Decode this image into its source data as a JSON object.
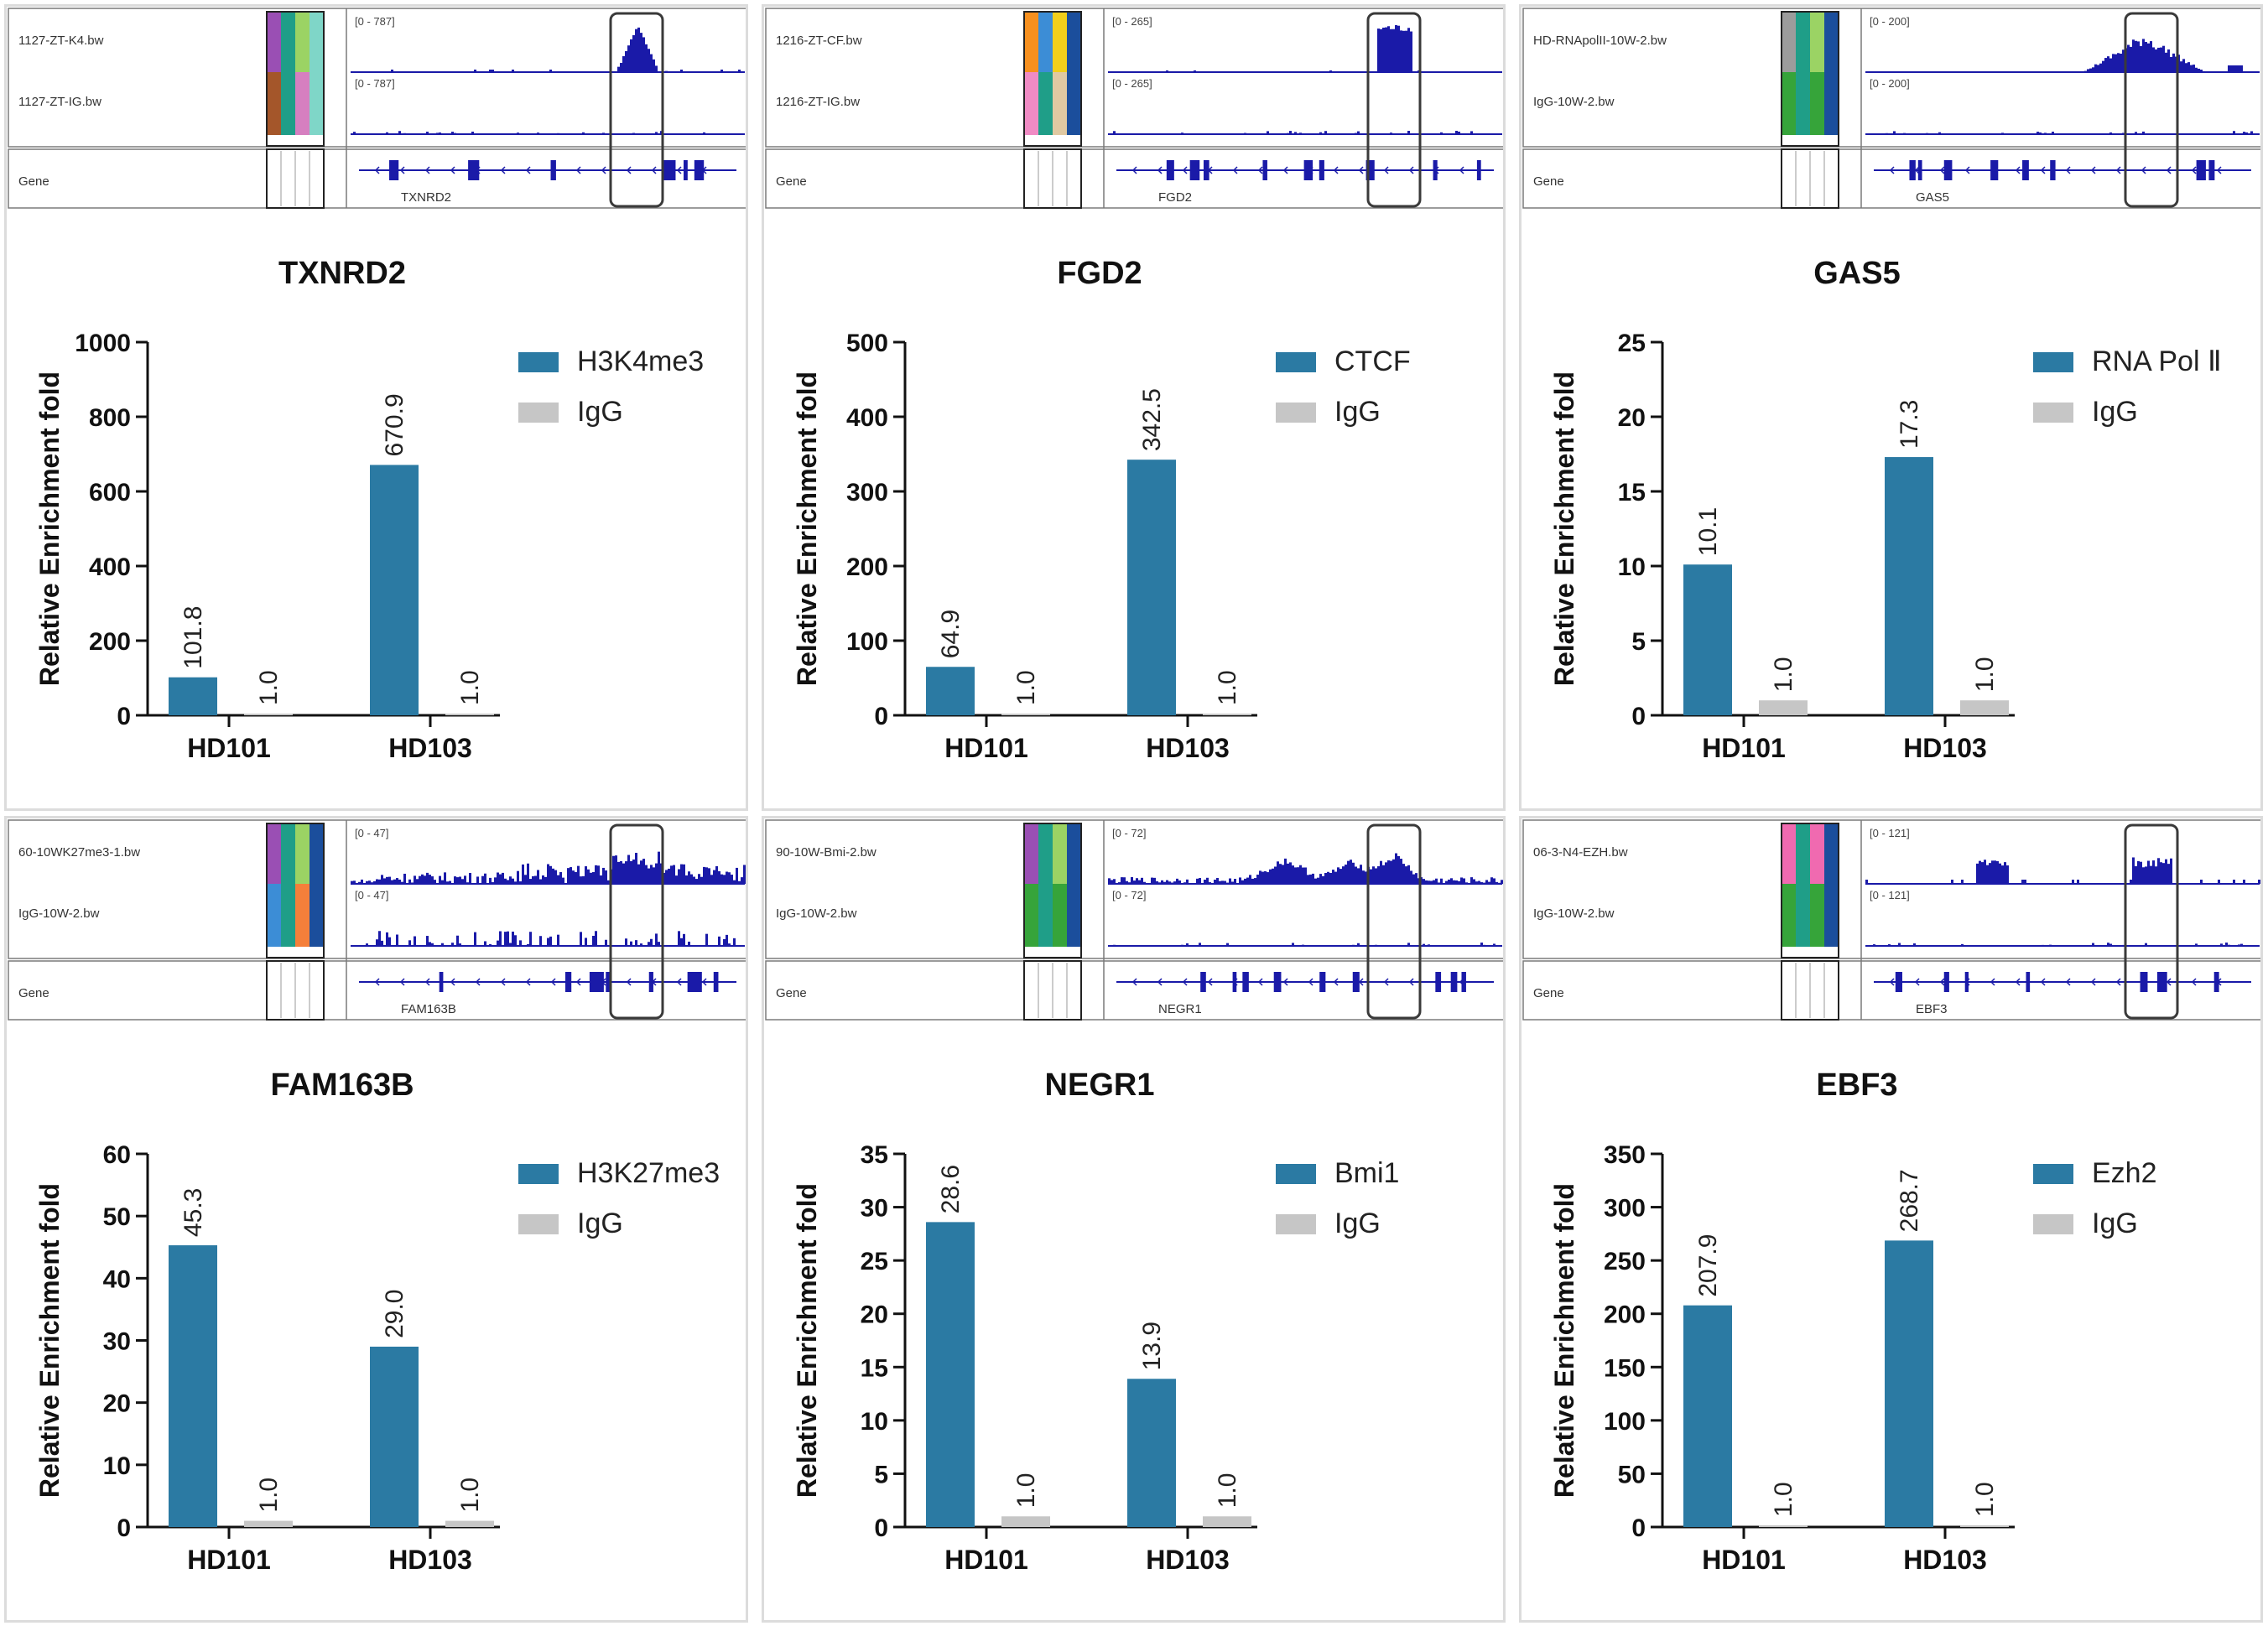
{
  "colors": {
    "primary_bar": "#2b7aa3",
    "igg_bar": "#c6c6c6",
    "track": "#1a1aa8",
    "highlight_box": "#3a3a3a",
    "panel_border": "#dcdcdc"
  },
  "x_label_series_order": [
    "primary",
    "IgG"
  ],
  "panels": [
    {
      "igv": {
        "track1_name": "1127-ZT-K4.bw",
        "track1_range": "[0 - 787]",
        "track2_name": "1127-ZT-IG.bw",
        "track2_range": "[0 - 787]",
        "gene_label": "Gene",
        "gene_name": "TXNRD2",
        "swatches_top": [
          "#9a4fb4",
          "#1f9e88",
          "#9bd364",
          "#7fd6c8"
        ],
        "swatches_bottom": [
          "#a4562a",
          "#1f9e88",
          "#d67fc0",
          "#7fd6c8"
        ],
        "peak_profile": "sharp-peak",
        "igg_profile": "flat"
      }
    },
    {
      "igv": {
        "track1_name": "1216-ZT-CF.bw",
        "track1_range": "[0 - 265]",
        "track2_name": "1216-ZT-IG.bw",
        "track2_range": "[0 - 265]",
        "gene_label": "Gene",
        "gene_name": "FGD2",
        "swatches_top": [
          "#f7901e",
          "#3c8dd6",
          "#f2cf1b",
          "#1b4e9c"
        ],
        "swatches_bottom": [
          "#f08bc4",
          "#1f9e88",
          "#e0c9a2",
          "#1b4e9c"
        ],
        "peak_profile": "block-peak",
        "igg_profile": "flat"
      }
    },
    {
      "igv": {
        "track1_name": "HD-RNApolII-10W-2.bw",
        "track1_range": "[0 - 200]",
        "track2_name": "IgG-10W-2.bw",
        "track2_range": "[0 - 200]",
        "gene_label": "Gene",
        "gene_name": "GAS5",
        "swatches_top": [
          "#9c9c9c",
          "#1f9e88",
          "#9bd364",
          "#1b4e9c"
        ],
        "swatches_bottom": [
          "#36a43a",
          "#1f9e88",
          "#36a43a",
          "#1b4e9c"
        ],
        "peak_profile": "broad-hump",
        "igg_profile": "flat"
      }
    },
    {
      "igv": {
        "track1_name": "60-10WK27me3-1.bw",
        "track1_range": "[0 - 47]",
        "track2_name": "IgG-10W-2.bw",
        "track2_range": "[0 - 47]",
        "gene_label": "Gene",
        "gene_name": "FAM163B",
        "swatches_top": [
          "#9a4fb4",
          "#1f9e88",
          "#9bd364",
          "#1b4e9c"
        ],
        "swatches_bottom": [
          "#3c8dd6",
          "#1f9e88",
          "#f57f3a",
          "#1b4e9c"
        ],
        "peak_profile": "noisy",
        "igg_profile": "noisy"
      }
    },
    {
      "igv": {
        "track1_name": "90-10W-Bmi-2.bw",
        "track1_range": "[0 - 72]",
        "track2_name": "IgG-10W-2.bw",
        "track2_range": "[0 - 72]",
        "gene_label": "Gene",
        "gene_name": "NEGR1",
        "swatches_top": [
          "#9a4fb4",
          "#1f9e88",
          "#9bd364",
          "#1b4e9c"
        ],
        "swatches_bottom": [
          "#36a43a",
          "#1f9e88",
          "#36a43a",
          "#1b4e9c"
        ],
        "peak_profile": "noisy-hills",
        "igg_profile": "flat"
      }
    },
    {
      "igv": {
        "track1_name": "06-3-N4-EZH.bw",
        "track1_range": "[0 - 121]",
        "track2_name": "IgG-10W-2.bw",
        "track2_range": "[0 - 121]",
        "gene_label": "Gene",
        "gene_name": "EBF3",
        "swatches_top": [
          "#f06ab0",
          "#1f9e88",
          "#f06ab0",
          "#1b4e9c"
        ],
        "swatches_bottom": [
          "#36a43a",
          "#1f9e88",
          "#36a43a",
          "#1b4e9c"
        ],
        "peak_profile": "cluster",
        "igg_profile": "flat"
      }
    }
  ],
  "chart_data": [
    {
      "type": "bar",
      "title": "TXNRD2",
      "xlabel": "",
      "ylabel": "Relative Enrichment fold",
      "categories": [
        "HD101",
        "HD103"
      ],
      "ylim": [
        0,
        1000
      ],
      "yticks": [
        0,
        200,
        400,
        600,
        800,
        1000
      ],
      "series": [
        {
          "name": "H3K4me3",
          "values": [
            101.8,
            670.9
          ],
          "labels": [
            "101.8",
            "670.9"
          ]
        },
        {
          "name": "IgG",
          "values": [
            1.0,
            1.0
          ],
          "labels": [
            "1.0",
            "1.0"
          ]
        }
      ],
      "legend": "top-right",
      "grid": false
    },
    {
      "type": "bar",
      "title": "FGD2",
      "xlabel": "",
      "ylabel": "Relative Enrichment fold",
      "categories": [
        "HD101",
        "HD103"
      ],
      "ylim": [
        0,
        500
      ],
      "yticks": [
        0,
        100,
        200,
        300,
        400,
        500
      ],
      "series": [
        {
          "name": "CTCF",
          "values": [
            64.9,
            342.5
          ],
          "labels": [
            "64.9",
            "342.5"
          ]
        },
        {
          "name": "IgG",
          "values": [
            1.0,
            1.0
          ],
          "labels": [
            "1.0",
            "1.0"
          ]
        }
      ],
      "legend": "top-right",
      "grid": false
    },
    {
      "type": "bar",
      "title": "GAS5",
      "xlabel": "",
      "ylabel": "Relative Enrichment fold",
      "categories": [
        "HD101",
        "HD103"
      ],
      "ylim": [
        0,
        25
      ],
      "yticks": [
        0,
        5,
        10,
        15,
        20,
        25
      ],
      "series": [
        {
          "name": "RNA Pol Ⅱ",
          "values": [
            10.1,
            17.3
          ],
          "labels": [
            "10.1",
            "17.3"
          ]
        },
        {
          "name": "IgG",
          "values": [
            1.0,
            1.0
          ],
          "labels": [
            "1.0",
            "1.0"
          ]
        }
      ],
      "legend": "top-right",
      "grid": false
    },
    {
      "type": "bar",
      "title": "FAM163B",
      "xlabel": "",
      "ylabel": "Relative Enrichment fold",
      "categories": [
        "HD101",
        "HD103"
      ],
      "ylim": [
        0,
        60
      ],
      "yticks": [
        0,
        10,
        20,
        30,
        40,
        50,
        60
      ],
      "series": [
        {
          "name": "H3K27me3",
          "values": [
            45.3,
            29.0
          ],
          "labels": [
            "45.3",
            "29.0"
          ]
        },
        {
          "name": "IgG",
          "values": [
            1.0,
            1.0
          ],
          "labels": [
            "1.0",
            "1.0"
          ]
        }
      ],
      "legend": "top-right",
      "grid": false
    },
    {
      "type": "bar",
      "title": "NEGR1",
      "xlabel": "",
      "ylabel": "Relative Enrichment fold",
      "categories": [
        "HD101",
        "HD103"
      ],
      "ylim": [
        0,
        35
      ],
      "yticks": [
        0,
        5,
        10,
        15,
        20,
        25,
        30,
        35
      ],
      "series": [
        {
          "name": "Bmi1",
          "values": [
            28.6,
            13.9
          ],
          "labels": [
            "28.6",
            "13.9"
          ]
        },
        {
          "name": "IgG",
          "values": [
            1.0,
            1.0
          ],
          "labels": [
            "1.0",
            "1.0"
          ]
        }
      ],
      "legend": "top-right",
      "grid": false
    },
    {
      "type": "bar",
      "title": "EBF3",
      "xlabel": "",
      "ylabel": "Relative Enrichment fold",
      "categories": [
        "HD101",
        "HD103"
      ],
      "ylim": [
        0,
        350
      ],
      "yticks": [
        0,
        50,
        100,
        150,
        200,
        250,
        300,
        350
      ],
      "series": [
        {
          "name": "Ezh2",
          "values": [
            207.9,
            268.7
          ],
          "labels": [
            "207.9",
            "268.7"
          ]
        },
        {
          "name": "IgG",
          "values": [
            1.0,
            1.0
          ],
          "labels": [
            "1.0",
            "1.0"
          ]
        }
      ],
      "legend": "top-right",
      "grid": false
    }
  ]
}
